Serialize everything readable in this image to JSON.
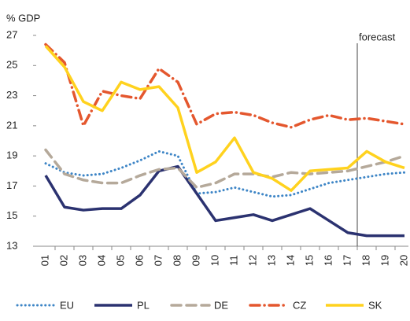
{
  "chart_data": {
    "type": "line",
    "y_label": "% GDP",
    "categories": [
      "01",
      "02",
      "03",
      "04",
      "05",
      "06",
      "07",
      "08",
      "09",
      "10",
      "11",
      "12",
      "13",
      "14",
      "15",
      "16",
      "17",
      "18",
      "19",
      "20"
    ],
    "series": [
      {
        "name": "EU",
        "color": "#3d85c6",
        "style": "dotted",
        "values": [
          18.5,
          17.9,
          17.7,
          17.8,
          18.2,
          18.7,
          19.3,
          19.0,
          16.5,
          16.6,
          16.9,
          16.6,
          16.3,
          16.4,
          16.8,
          17.2,
          17.4,
          17.6,
          17.8,
          17.9
        ]
      },
      {
        "name": "PL",
        "color": "#2b3270",
        "style": "solid",
        "values": [
          17.7,
          15.6,
          15.4,
          15.5,
          15.5,
          16.4,
          18.0,
          18.3,
          16.5,
          14.7,
          14.9,
          15.1,
          14.7,
          15.1,
          15.5,
          14.7,
          13.9,
          13.7,
          13.7,
          13.7
        ]
      },
      {
        "name": "DE",
        "color": "#b5a99a",
        "style": "dashed",
        "values": [
          19.4,
          17.8,
          17.4,
          17.2,
          17.2,
          17.7,
          18.1,
          18.2,
          16.9,
          17.2,
          17.8,
          17.8,
          17.6,
          17.9,
          17.8,
          17.9,
          18.0,
          18.3,
          18.6,
          19.0
        ]
      },
      {
        "name": "CZ",
        "color": "#e4572e",
        "style": "dashdot",
        "values": [
          26.4,
          25.2,
          21.0,
          23.3,
          23.0,
          22.8,
          24.8,
          23.9,
          21.1,
          21.8,
          21.9,
          21.7,
          21.2,
          20.9,
          21.4,
          21.7,
          21.4,
          21.5,
          21.3,
          21.1
        ]
      },
      {
        "name": "SK",
        "color": "#ffd21e",
        "style": "solid",
        "values": [
          26.3,
          24.9,
          22.6,
          22.0,
          23.9,
          23.4,
          23.6,
          22.2,
          17.9,
          18.6,
          20.2,
          17.9,
          17.5,
          16.7,
          18.0,
          18.1,
          18.2,
          19.3,
          18.6,
          18.2
        ]
      }
    ],
    "ylim": [
      13,
      27
    ],
    "yticks": [
      13,
      15,
      17,
      19,
      21,
      23,
      25,
      27
    ],
    "annotation": {
      "text": "forecast",
      "category": "18"
    }
  }
}
